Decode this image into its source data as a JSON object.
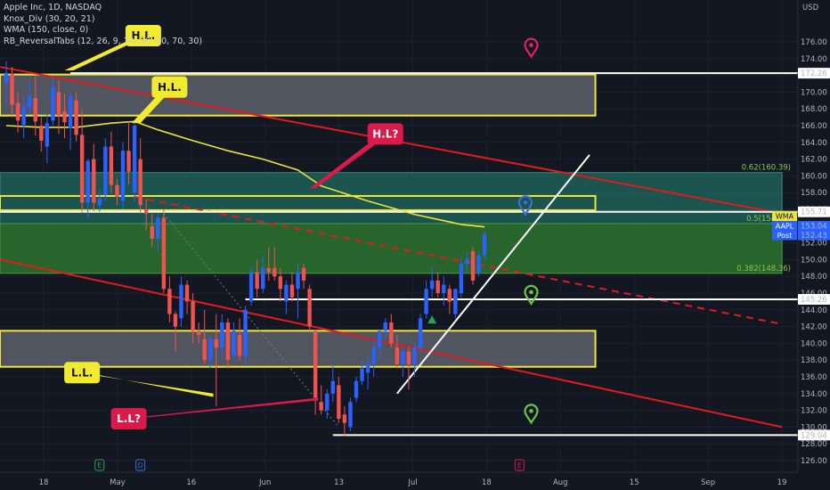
{
  "legend": {
    "title": "Apple Inc, 1D, NASDAQ",
    "ind1": "Knox_Div (30, 20, 21)",
    "ind2": "WMA (150, close, 0)",
    "ind3": "RB_ReversalTabs (12, 26, 9, 70, 30, 30, 70, 30)"
  },
  "colors": {
    "background": "#131722",
    "up": "#2962ff",
    "down": "#ef5350",
    "wma": "#e8e43a",
    "trend_red": "#e01b1b",
    "white_line": "#ffffff",
    "teal_zone": "#1e5f57",
    "green_zone": "#2a6e2f",
    "gray_zone": "#5d606b",
    "zone_border": "#f0e63a",
    "label_red": "#d81b4a",
    "label_yellow": "#f2ea2e"
  },
  "chart_data": {
    "type": "candlestick",
    "symbol": "AAPL",
    "interval": "1D",
    "exchange": "NASDAQ",
    "y_axis_label": "USD",
    "ylim": [
      125,
      178
    ],
    "yticks": [
      "126.00",
      "128.00",
      "130.00",
      "132.00",
      "134.00",
      "136.00",
      "138.00",
      "140.00",
      "142.00",
      "144.00",
      "146.00",
      "148.00",
      "150.00",
      "152.00",
      "154.00",
      "156.00",
      "158.00",
      "160.00",
      "162.00",
      "164.00",
      "166.00",
      "168.00",
      "170.00",
      "172.00",
      "174.00",
      "176.00"
    ],
    "xticks": [
      "18",
      "May",
      "16",
      "Jun",
      "13",
      "Jul",
      "18",
      "Aug",
      "15",
      "Sep",
      "19"
    ],
    "candles": [
      {
        "o": 171.1,
        "h": 173.7,
        "l": 168.5,
        "c": 172.3
      },
      {
        "o": 172.2,
        "h": 173.0,
        "l": 167.0,
        "c": 168.5
      },
      {
        "o": 168.7,
        "h": 170.0,
        "l": 165.2,
        "c": 166.6
      },
      {
        "o": 166.1,
        "h": 169.5,
        "l": 164.5,
        "c": 168.3
      },
      {
        "o": 168.2,
        "h": 171.5,
        "l": 167.5,
        "c": 169.5
      },
      {
        "o": 169.3,
        "h": 171.9,
        "l": 164.8,
        "c": 166.5
      },
      {
        "o": 166.0,
        "h": 167.0,
        "l": 162.9,
        "c": 164.2
      },
      {
        "o": 163.5,
        "h": 167.5,
        "l": 161.5,
        "c": 166.3
      },
      {
        "o": 166.6,
        "h": 171.8,
        "l": 166.0,
        "c": 170.6
      },
      {
        "o": 170.0,
        "h": 171.5,
        "l": 165.0,
        "c": 167.2
      },
      {
        "o": 167.7,
        "h": 169.8,
        "l": 164.5,
        "c": 166.4
      },
      {
        "o": 165.7,
        "h": 169.9,
        "l": 163.1,
        "c": 169.5
      },
      {
        "o": 169.0,
        "h": 170.0,
        "l": 164.1,
        "c": 164.9
      },
      {
        "o": 164.9,
        "h": 167.9,
        "l": 155.6,
        "c": 156.8
      },
      {
        "o": 156.8,
        "h": 162.0,
        "l": 155.0,
        "c": 161.8
      },
      {
        "o": 162.0,
        "h": 163.8,
        "l": 155.8,
        "c": 156.8
      },
      {
        "o": 156.5,
        "h": 158.3,
        "l": 155.7,
        "c": 157.3
      },
      {
        "o": 157.7,
        "h": 164.5,
        "l": 157.0,
        "c": 163.5
      },
      {
        "o": 163.5,
        "h": 165.3,
        "l": 157.9,
        "c": 158.9
      },
      {
        "o": 158.9,
        "h": 159.6,
        "l": 156.5,
        "c": 157.5
      },
      {
        "o": 157.0,
        "h": 164.0,
        "l": 156.0,
        "c": 163.0
      },
      {
        "o": 163.0,
        "h": 166.5,
        "l": 159.0,
        "c": 160.5
      },
      {
        "o": 158.0,
        "h": 166.5,
        "l": 157.0,
        "c": 166.0
      },
      {
        "o": 162.0,
        "h": 164.5,
        "l": 155.5,
        "c": 156.5
      },
      {
        "o": 156.0,
        "h": 157.2,
        "l": 153.5,
        "c": 155.5
      },
      {
        "o": 154.0,
        "h": 155.5,
        "l": 151.5,
        "c": 152.5
      },
      {
        "o": 152.5,
        "h": 155.5,
        "l": 151.0,
        "c": 155.0
      },
      {
        "o": 155.0,
        "h": 156.0,
        "l": 146.0,
        "c": 146.5
      },
      {
        "o": 146.5,
        "h": 148.0,
        "l": 142.5,
        "c": 143.5
      },
      {
        "o": 143.5,
        "h": 143.8,
        "l": 139.0,
        "c": 142.0
      },
      {
        "o": 143.0,
        "h": 148.0,
        "l": 142.0,
        "c": 147.0
      },
      {
        "o": 147.0,
        "h": 147.5,
        "l": 143.5,
        "c": 145.0
      },
      {
        "o": 145.0,
        "h": 146.0,
        "l": 140.0,
        "c": 141.5
      },
      {
        "o": 141.5,
        "h": 142.5,
        "l": 140.0,
        "c": 141.0
      },
      {
        "o": 140.5,
        "h": 144.0,
        "l": 137.5,
        "c": 138.0
      },
      {
        "o": 138.0,
        "h": 141.0,
        "l": 137.0,
        "c": 140.5
      },
      {
        "o": 140.5,
        "h": 143.5,
        "l": 132.5,
        "c": 139.5
      },
      {
        "o": 139.5,
        "h": 143.5,
        "l": 138.0,
        "c": 142.5
      },
      {
        "o": 142.5,
        "h": 143.0,
        "l": 137.0,
        "c": 138.0
      },
      {
        "o": 138.5,
        "h": 142.5,
        "l": 138.0,
        "c": 141.5
      },
      {
        "o": 141.0,
        "h": 143.0,
        "l": 138.0,
        "c": 138.5
      },
      {
        "o": 138.5,
        "h": 144.5,
        "l": 137.5,
        "c": 144.0
      },
      {
        "o": 145.0,
        "h": 149.0,
        "l": 144.5,
        "c": 148.5
      },
      {
        "o": 148.5,
        "h": 150.0,
        "l": 145.5,
        "c": 146.5
      },
      {
        "o": 146.5,
        "h": 150.5,
        "l": 146.0,
        "c": 149.0
      },
      {
        "o": 149.0,
        "h": 151.5,
        "l": 147.5,
        "c": 148.5
      },
      {
        "o": 149.0,
        "h": 151.5,
        "l": 147.5,
        "c": 148.0
      },
      {
        "o": 148.0,
        "h": 149.0,
        "l": 145.0,
        "c": 146.5
      },
      {
        "o": 145.0,
        "h": 147.5,
        "l": 143.5,
        "c": 147.0
      },
      {
        "o": 147.0,
        "h": 148.5,
        "l": 145.0,
        "c": 145.5
      },
      {
        "o": 146.5,
        "h": 149.5,
        "l": 143.0,
        "c": 148.5
      },
      {
        "o": 149.0,
        "h": 149.5,
        "l": 146.5,
        "c": 147.5
      },
      {
        "o": 146.5,
        "h": 147.0,
        "l": 141.5,
        "c": 142.0
      },
      {
        "o": 141.5,
        "h": 141.5,
        "l": 131.5,
        "c": 133.5
      },
      {
        "o": 133.0,
        "h": 135.0,
        "l": 131.5,
        "c": 132.0
      },
      {
        "o": 132.0,
        "h": 134.5,
        "l": 131.0,
        "c": 134.0
      },
      {
        "o": 134.0,
        "h": 137.5,
        "l": 133.0,
        "c": 135.5
      },
      {
        "o": 135.0,
        "h": 136.0,
        "l": 130.5,
        "c": 131.0
      },
      {
        "o": 131.5,
        "h": 132.5,
        "l": 129.0,
        "c": 130.5
      },
      {
        "o": 130.0,
        "h": 133.5,
        "l": 129.5,
        "c": 133.0
      },
      {
        "o": 133.5,
        "h": 136.0,
        "l": 133.0,
        "c": 135.5
      },
      {
        "o": 135.5,
        "h": 138.0,
        "l": 135.0,
        "c": 137.0
      },
      {
        "o": 136.5,
        "h": 138.5,
        "l": 134.5,
        "c": 137.5
      },
      {
        "o": 137.5,
        "h": 140.5,
        "l": 136.0,
        "c": 139.5
      },
      {
        "o": 139.5,
        "h": 141.5,
        "l": 138.0,
        "c": 141.5
      },
      {
        "o": 141.5,
        "h": 143.0,
        "l": 140.5,
        "c": 142.5
      },
      {
        "o": 142.5,
        "h": 143.5,
        "l": 139.5,
        "c": 140.0
      },
      {
        "o": 139.5,
        "h": 141.0,
        "l": 137.0,
        "c": 137.5
      },
      {
        "o": 137.5,
        "h": 139.5,
        "l": 136.0,
        "c": 139.0
      },
      {
        "o": 139.0,
        "h": 139.5,
        "l": 134.5,
        "c": 137.5
      },
      {
        "o": 137.5,
        "h": 140.0,
        "l": 136.0,
        "c": 139.5
      },
      {
        "o": 139.5,
        "h": 143.5,
        "l": 139.0,
        "c": 143.0
      },
      {
        "o": 143.5,
        "h": 147.5,
        "l": 143.0,
        "c": 146.5
      },
      {
        "o": 146.5,
        "h": 149.0,
        "l": 145.5,
        "c": 147.5
      },
      {
        "o": 147.5,
        "h": 148.5,
        "l": 145.5,
        "c": 146.0
      },
      {
        "o": 146.0,
        "h": 148.0,
        "l": 144.5,
        "c": 147.0
      },
      {
        "o": 146.5,
        "h": 147.0,
        "l": 143.5,
        "c": 145.0
      },
      {
        "o": 143.5,
        "h": 146.5,
        "l": 143.0,
        "c": 146.5
      },
      {
        "o": 146.0,
        "h": 150.5,
        "l": 145.5,
        "c": 149.5
      },
      {
        "o": 149.5,
        "h": 151.0,
        "l": 148.5,
        "c": 150.0
      },
      {
        "o": 151.0,
        "h": 151.5,
        "l": 147.0,
        "c": 147.5
      },
      {
        "o": 148.5,
        "h": 151.0,
        "l": 148.0,
        "c": 150.5
      },
      {
        "o": 150.5,
        "h": 153.5,
        "l": 150.0,
        "c": 153.0
      }
    ],
    "wma": [
      {
        "i": 0,
        "v": 166.0
      },
      {
        "i": 6,
        "v": 165.8
      },
      {
        "i": 12,
        "v": 165.8
      },
      {
        "i": 18,
        "v": 166.3
      },
      {
        "i": 22,
        "v": 166.5
      },
      {
        "i": 26,
        "v": 165.5
      },
      {
        "i": 32,
        "v": 164.2
      },
      {
        "i": 38,
        "v": 163.0
      },
      {
        "i": 44,
        "v": 162.0
      },
      {
        "i": 50,
        "v": 160.7
      },
      {
        "i": 54,
        "v": 158.8
      },
      {
        "i": 58,
        "v": 157.9
      },
      {
        "i": 62,
        "v": 157.0
      },
      {
        "i": 66,
        "v": 156.2
      },
      {
        "i": 70,
        "v": 155.4
      },
      {
        "i": 74,
        "v": 154.8
      },
      {
        "i": 78,
        "v": 154.2
      },
      {
        "i": 82,
        "v": 153.9
      }
    ],
    "zones": [
      {
        "name": "upper-gray-zone",
        "kind": "gray",
        "from_i": 0,
        "to_i": 101,
        "top": 172.1,
        "bottom": 167.2
      },
      {
        "name": "teal-zone",
        "kind": "teal",
        "from_i": 0,
        "to_i": 133,
        "top": 160.39,
        "bottom": 154.3
      },
      {
        "name": "green-zone",
        "kind": "green",
        "from_i": 0,
        "to_i": 133,
        "top": 154.3,
        "bottom": 148.36
      },
      {
        "name": "yellow-band",
        "kind": "yellow",
        "from_i": 0,
        "to_i": 101,
        "top": 157.6,
        "bottom": 155.9
      },
      {
        "name": "lower-gray-zone",
        "kind": "gray",
        "from_i": 0,
        "to_i": 101,
        "top": 141.5,
        "bottom": 137.2
      }
    ],
    "hlines": [
      {
        "name": "resistance-line-172",
        "from_i": 11,
        "to_i": 133,
        "value": 172.26,
        "label": "172.26"
      },
      {
        "name": "line-155",
        "from_i": 0,
        "to_i": 133,
        "value": 155.71,
        "label": "155.71"
      },
      {
        "name": "support-line-145",
        "from_i": 41,
        "to_i": 133,
        "value": 145.26,
        "label": "145.26"
      },
      {
        "name": "low-line-129",
        "from_i": 56,
        "to_i": 133,
        "value": 129.04,
        "label": "129.04"
      }
    ],
    "fib_labels": [
      {
        "text": "0.62(160.39)",
        "value": 160.39
      },
      {
        "text": "0.5(154.32)",
        "value": 154.32
      },
      {
        "text": "0.382(148.36)",
        "value": 148.36
      }
    ],
    "trendlines": [
      {
        "name": "red-upper-trendline",
        "style": "solid",
        "p1": {
          "i": -1,
          "v": 173.0
        },
        "p2": {
          "i": 133,
          "v": 155.5
        }
      },
      {
        "name": "red-dashed-trendline",
        "style": "dashed",
        "p1": {
          "i": 22,
          "v": 157.5
        },
        "p2": {
          "i": 133,
          "v": 142.3
        }
      },
      {
        "name": "red-lower-trendline",
        "style": "solid",
        "p1": {
          "i": -1,
          "v": 150.0
        },
        "p2": {
          "i": 133,
          "v": 130.0
        }
      },
      {
        "name": "white-uptrend-line",
        "style": "solid-white",
        "p1": {
          "i": 67,
          "v": 134.0
        },
        "p2": {
          "i": 100,
          "v": 162.5
        }
      },
      {
        "name": "gray-dotted-diagonal",
        "style": "dotted-gray",
        "p1": {
          "i": 27,
          "v": 155.5
        },
        "p2": {
          "i": 57,
          "v": 130.0
        }
      }
    ],
    "price_tags": [
      {
        "text": "WMA",
        "value": 154.05,
        "bg": "#e8e43a",
        "fg": "#131722"
      },
      {
        "text": "AAPL",
        "value": 153.04,
        "bg": "#2962ff",
        "fg": "#ffffff"
      },
      {
        "text": "153.04",
        "value": 153.04,
        "bg": "#2962ff",
        "fg": "#ffffff"
      },
      {
        "text": "Post",
        "value": 152.43,
        "bg": "#2962ff",
        "fg": "#ffffff"
      },
      {
        "text": "152.43",
        "value": 152.43,
        "bg": "#2962ff",
        "fg": "#ffffff"
      }
    ],
    "annotations": [
      {
        "text": "H.L.",
        "style": "yellow",
        "cx_i": 23.5,
        "cy_v": 176.75,
        "pointer": [
          {
            "i": 10,
            "v": 172.6
          },
          {
            "i": 11.5,
            "v": 172.6
          }
        ]
      },
      {
        "text": "H.L.",
        "style": "yellow",
        "cx_i": 28,
        "cy_v": 170.6,
        "pointer": [
          {
            "i": 21.5,
            "v": 166.3
          },
          {
            "i": 23,
            "v": 166.3
          }
        ]
      },
      {
        "text": "H.L?",
        "style": "red",
        "cx_i": 65,
        "cy_v": 165.0,
        "pointer": [
          {
            "i": 52,
            "v": 158.5
          },
          {
            "i": 53,
            "v": 158.5
          }
        ]
      },
      {
        "text": "L.L.",
        "style": "yellow",
        "cx_i": 13,
        "cy_v": 136.5,
        "pointer": [
          {
            "i": 35.5,
            "v": 134.0
          },
          {
            "i": 35.5,
            "v": 133.6
          }
        ]
      },
      {
        "text": "L.L?",
        "style": "red",
        "cx_i": 21,
        "cy_v": 131.0,
        "pointer": [
          {
            "i": 53.5,
            "v": 133.5
          },
          {
            "i": 53.5,
            "v": 133.2
          }
        ]
      }
    ],
    "markers": [
      {
        "name": "pin-red",
        "color": "#e0245e",
        "i": 90,
        "v": 175.3
      },
      {
        "name": "pin-blue",
        "color": "#3d6fd8",
        "i": 89,
        "v": 156.5
      },
      {
        "name": "pin-green-upper",
        "color": "#6cc24a",
        "i": 90,
        "v": 145.8
      },
      {
        "name": "pin-green-lower",
        "color": "#6cc24a",
        "i": 90,
        "v": 131.6
      },
      {
        "name": "triangle-up",
        "color": "#2aa05a",
        "i": 73,
        "v": 142.8
      }
    ],
    "event_badges": [
      {
        "text": "E",
        "i": 16,
        "color": "#2aa05a"
      },
      {
        "text": "D",
        "i": 23,
        "color": "#3d6fd8"
      },
      {
        "text": "E",
        "i": 88,
        "color": "#d81b4a"
      }
    ]
  }
}
